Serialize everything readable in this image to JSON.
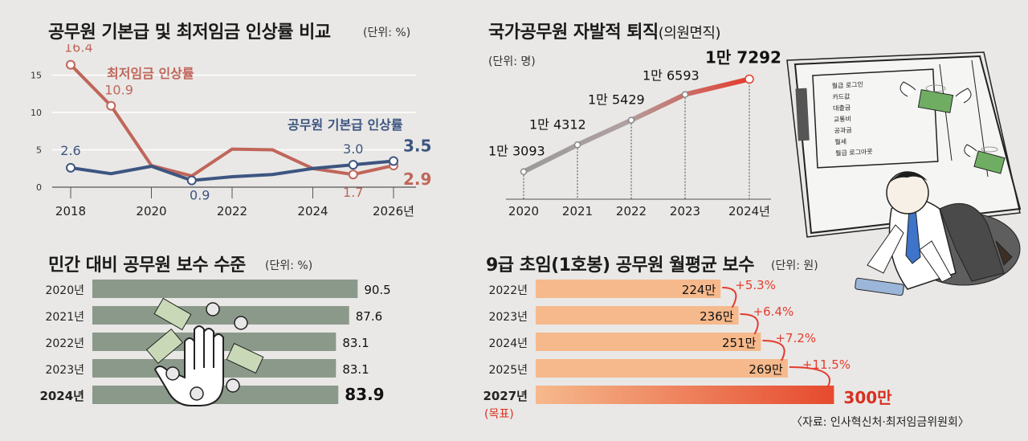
{
  "colors": {
    "min_wage": "#c0665a",
    "civil": "#3d5580",
    "bar_green": "#8b998b",
    "bar_orange_start": "#f6b98c",
    "bar_orange_end": "#e64a2e",
    "line_gray": "#9a9a9a",
    "line_red": "#e53b2c"
  },
  "panel1": {
    "title": "공무원 기본급 및 최저임금 인상률 비교",
    "unit": "(단위: %)",
    "chart_data": {
      "type": "line",
      "title": "공무원 기본급 및 최저임금 인상률 비교",
      "x": [
        2018,
        2019,
        2020,
        2021,
        2022,
        2023,
        2024,
        2025,
        2026
      ],
      "x_tick_labels": [
        "2018",
        "2020",
        "2022",
        "2024",
        "2026년"
      ],
      "x_tick_values": [
        2018,
        2020,
        2022,
        2024,
        2026
      ],
      "y_ticks": [
        0,
        5,
        10,
        15
      ],
      "ylim": [
        0,
        17
      ],
      "series": [
        {
          "name": "최저임금 인상률",
          "values": [
            16.4,
            10.9,
            2.9,
            1.5,
            5.1,
            5.0,
            2.5,
            1.7,
            2.9
          ]
        },
        {
          "name": "공무원 기본급 인상률",
          "values": [
            2.6,
            1.8,
            2.8,
            0.9,
            1.4,
            1.7,
            2.5,
            3.0,
            3.5
          ]
        }
      ],
      "data_labels": {
        "min_wage": [
          {
            "x": 2018,
            "label": "16.4"
          },
          {
            "x": 2019,
            "label": "10.9"
          },
          {
            "x": 2025,
            "label": "1.7"
          },
          {
            "x": 2026,
            "label": "2.9"
          }
        ],
        "civil": [
          {
            "x": 2018,
            "label": "2.6"
          },
          {
            "x": 2021,
            "label": "0.9"
          },
          {
            "x": 2025,
            "label": "3.0"
          },
          {
            "x": 2026,
            "label": "3.5"
          }
        ]
      }
    }
  },
  "panel2": {
    "title": "국가공무원 자발적 퇴직",
    "title_sub": "(의원면직)",
    "unit": "(단위: 명)",
    "chart_data": {
      "type": "line",
      "x": [
        "2020",
        "2021",
        "2022",
        "2023",
        "2024년"
      ],
      "values": [
        13093,
        14312,
        15429,
        16593,
        17292
      ],
      "labels": [
        "1만 3093",
        "1만 4312",
        "1만 5429",
        "1만 6593",
        "1만 7292"
      ],
      "ylim": [
        12500,
        17600
      ]
    }
  },
  "panel3": {
    "title": "민간 대비 공무원 보수 수준",
    "unit": "(단위: %)",
    "chart_data": {
      "type": "bar",
      "categories": [
        "2020년",
        "2021년",
        "2022년",
        "2023년",
        "2024년"
      ],
      "values": [
        90.5,
        87.6,
        83.1,
        83.1,
        83.9
      ],
      "value_labels": [
        "90.5",
        "87.6",
        "83.1",
        "83.1",
        "83.9"
      ],
      "xlim": [
        0,
        100
      ]
    }
  },
  "panel4": {
    "title": "9급 초임(1호봉) 공무원 월평균 보수",
    "unit": "(단위: 원)",
    "target_tag": "(목표)",
    "chart_data": {
      "type": "bar",
      "categories": [
        "2022년",
        "2023년",
        "2024년",
        "2025년",
        "2027년"
      ],
      "values": [
        224,
        236,
        251,
        269,
        300
      ],
      "value_labels": [
        "224만",
        "236만",
        "251만",
        "269만",
        "300만"
      ],
      "changes": [
        "+5.3%",
        "+6.4%",
        "+7.2%",
        "+11.5%"
      ],
      "xlim": [
        0,
        310
      ]
    }
  },
  "illustration": {
    "screen_menu": [
      "월급 로그인",
      "카드값",
      "대출금",
      "교통비",
      "공과금",
      "월세",
      "월급 로그아웃"
    ]
  },
  "source": "〈자료: 인사혁신처·최저임금위원회〉"
}
